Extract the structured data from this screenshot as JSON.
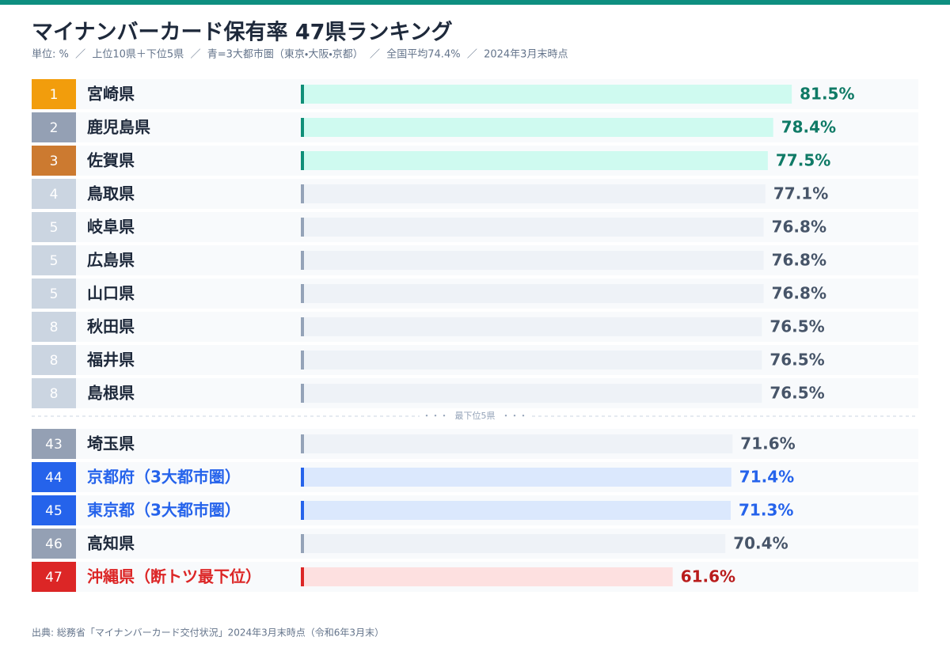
{
  "chart_data": [
    {
      "type": "bar",
      "title": "マイナンバーカード保有率 47県ランキング",
      "subtitle": "単位: %  ／  上位10県＋下位5県  ／  青=3大都市圏（東京・大阪・京都）  ／  全国平均74.4%  ／  2024年3月末時点",
      "ranks": [
        "1",
        "2",
        "3",
        "4",
        "5",
        "5",
        "5",
        "8",
        "8",
        "8"
      ],
      "categories": [
        "宮崎県",
        "鹿児島県",
        "佐賀県",
        "鳥取県",
        "岐阜県",
        "広島県",
        "山口県",
        "秋田県",
        "福井県",
        "島根県"
      ],
      "values": [
        81.5,
        78.4,
        77.5,
        77.1,
        76.8,
        76.8,
        76.8,
        76.5,
        76.5,
        76.5
      ],
      "value_labels": [
        "81.5%",
        "78.4%",
        "77.5%",
        "77.1%",
        "76.8%",
        "76.8%",
        "76.8%",
        "76.5%",
        "76.5%",
        "76.5%"
      ],
      "badge_colors": [
        "#f29d0c",
        "#94a0b4",
        "#cc7a30",
        "#cbd5e1",
        "#cbd5e1",
        "#cbd5e1",
        "#cbd5e1",
        "#cbd5e1",
        "#cbd5e1",
        "#cbd5e1"
      ],
      "bar_colors": [
        "#cffaf0",
        "#cffaf0",
        "#cffaf0",
        "#eef2f7",
        "#eef2f7",
        "#eef2f7",
        "#eef2f7",
        "#eef2f7",
        "#eef2f7",
        "#eef2f7"
      ],
      "accent_colors": [
        "#0f8f78",
        "#0f8f78",
        "#0f8f78",
        "#94a3b8",
        "#94a3b8",
        "#94a3b8",
        "#94a3b8",
        "#94a3b8",
        "#94a3b8",
        "#94a3b8"
      ],
      "name_colors": [
        "#1e293b",
        "#1e293b",
        "#1e293b",
        "#1e293b",
        "#1e293b",
        "#1e293b",
        "#1e293b",
        "#1e293b",
        "#1e293b",
        "#1e293b"
      ],
      "label_colors": [
        "#0f7a66",
        "#0f7a66",
        "#0f7a66",
        "#475569",
        "#475569",
        "#475569",
        "#475569",
        "#475569",
        "#475569",
        "#475569"
      ],
      "xlim": [
        0,
        100
      ]
    },
    {
      "type": "bar",
      "section_label": "最下位5県",
      "ranks": [
        "43",
        "44",
        "45",
        "46",
        "47"
      ],
      "categories": [
        "埼玉県",
        "京都府（3大都市圏）",
        "東京都（3大都市圏）",
        "高知県",
        "沖縄県（断トツ最下位）"
      ],
      "values": [
        71.6,
        71.4,
        71.3,
        70.4,
        61.6
      ],
      "value_labels": [
        "71.6%",
        "71.4%",
        "71.3%",
        "70.4%",
        "61.6%"
      ],
      "badge_colors": [
        "#94a0b4",
        "#2563eb",
        "#2563eb",
        "#94a0b4",
        "#dc2626"
      ],
      "bar_colors": [
        "#eef2f7",
        "#dbe8fd",
        "#dbe8fd",
        "#eef2f7",
        "#fde0e0"
      ],
      "accent_colors": [
        "#94a3b8",
        "#2563eb",
        "#2563eb",
        "#94a3b8",
        "#dc2626"
      ],
      "name_colors": [
        "#1e293b",
        "#2563eb",
        "#2563eb",
        "#1e293b",
        "#dc2626"
      ],
      "label_colors": [
        "#475569",
        "#2563eb",
        "#2563eb",
        "#475569",
        "#b91c1c"
      ],
      "xlim": [
        0,
        100
      ],
      "source": "出典: 総務省「マイナンバーカード交付状況」2024年3月末時点（令和6年3月末）"
    }
  ]
}
